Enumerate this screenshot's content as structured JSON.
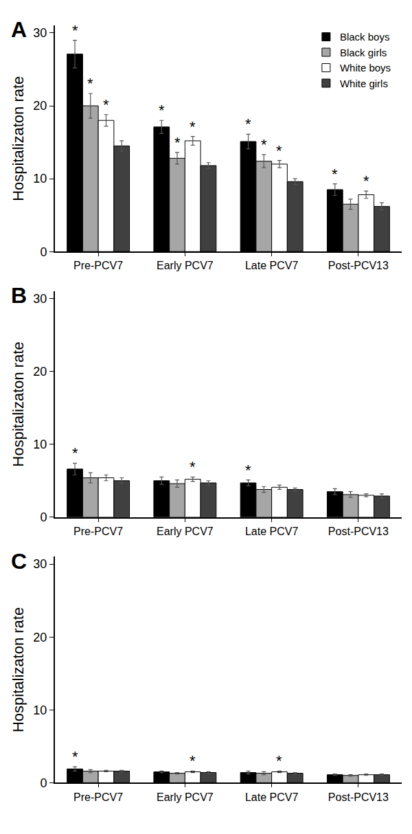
{
  "chart_data": [
    {
      "type": "bar",
      "title": "A",
      "y_label": "Hospitalizaton rate",
      "categories": [
        "Pre-PCV7",
        "Early PCV7",
        "Late PCV7",
        "Post-PCV13"
      ],
      "ylim": [
        0,
        31
      ],
      "yticks": [
        0,
        10,
        20,
        30
      ],
      "grid": false,
      "legend": "upper right",
      "series": [
        {
          "name": "Black boys",
          "color": "#000000",
          "values": [
            27.1,
            17.1,
            15.1,
            8.5
          ],
          "errors": [
            1.9,
            0.9,
            1.0,
            0.8
          ],
          "annotations": [
            "*",
            "*",
            "*",
            "*"
          ]
        },
        {
          "name": "Black girls",
          "color": "#a6a6a6",
          "values": [
            20.0,
            12.8,
            12.4,
            6.5
          ],
          "errors": [
            1.7,
            0.8,
            0.9,
            0.7
          ],
          "annotations": [
            "*",
            "*",
            "*",
            null
          ]
        },
        {
          "name": "White boys",
          "color": "#ffffff",
          "values": [
            18.0,
            15.2,
            12.0,
            7.8
          ],
          "errors": [
            0.8,
            0.6,
            0.5,
            0.5
          ],
          "annotations": [
            "*",
            "*",
            "*",
            "*"
          ]
        },
        {
          "name": "White girls",
          "color": "#404040",
          "values": [
            14.5,
            11.8,
            9.6,
            6.2
          ],
          "errors": [
            0.7,
            0.4,
            0.4,
            0.5
          ],
          "annotations": [
            null,
            null,
            null,
            null
          ]
        }
      ]
    },
    {
      "type": "bar",
      "title": "B",
      "y_label": "Hospitalizaton rate",
      "categories": [
        "Pre-PCV7",
        "Early PCV7",
        "Late PCV7",
        "Post-PCV13"
      ],
      "ylim": [
        0,
        31
      ],
      "yticks": [
        0,
        10,
        20,
        30
      ],
      "grid": false,
      "series": [
        {
          "name": "Black boys",
          "color": "#000000",
          "values": [
            6.6,
            5.0,
            4.7,
            3.5
          ],
          "errors": [
            0.8,
            0.5,
            0.4,
            0.4
          ],
          "annotations": [
            "*",
            null,
            "*",
            null
          ]
        },
        {
          "name": "Black girls",
          "color": "#a6a6a6",
          "values": [
            5.4,
            4.6,
            3.8,
            3.1
          ],
          "errors": [
            0.7,
            0.5,
            0.4,
            0.4
          ],
          "annotations": [
            null,
            null,
            null,
            null
          ]
        },
        {
          "name": "White boys",
          "color": "#ffffff",
          "values": [
            5.4,
            5.2,
            4.1,
            3.0
          ],
          "errors": [
            0.4,
            0.3,
            0.3,
            0.2
          ],
          "annotations": [
            null,
            "*",
            null,
            null
          ]
        },
        {
          "name": "White girls",
          "color": "#404040",
          "values": [
            5.0,
            4.7,
            3.8,
            2.9
          ],
          "errors": [
            0.4,
            0.3,
            0.2,
            0.3
          ],
          "annotations": [
            null,
            null,
            null,
            null
          ]
        }
      ]
    },
    {
      "type": "bar",
      "title": "C",
      "y_label": "Hospitalizaton rate",
      "categories": [
        "Pre-PCV7",
        "Early PCV7",
        "Late PCV7",
        "Post-PCV13"
      ],
      "ylim": [
        0,
        31
      ],
      "yticks": [
        0,
        10,
        20,
        30
      ],
      "grid": false,
      "series": [
        {
          "name": "Black boys",
          "color": "#000000",
          "values": [
            1.9,
            1.5,
            1.4,
            1.1
          ],
          "errors": [
            0.3,
            0.1,
            0.2,
            0.1
          ],
          "annotations": [
            "*",
            null,
            null,
            null
          ]
        },
        {
          "name": "Black girls",
          "color": "#a6a6a6",
          "values": [
            1.6,
            1.3,
            1.3,
            1.0
          ],
          "errors": [
            0.2,
            0.1,
            0.2,
            0.1
          ],
          "annotations": [
            null,
            null,
            null,
            null
          ]
        },
        {
          "name": "White boys",
          "color": "#ffffff",
          "values": [
            1.6,
            1.5,
            1.5,
            1.1
          ],
          "errors": [
            0.1,
            0.1,
            0.1,
            0.1
          ],
          "annotations": [
            null,
            "*",
            "*",
            null
          ]
        },
        {
          "name": "White girls",
          "color": "#404040",
          "values": [
            1.6,
            1.4,
            1.3,
            1.1
          ],
          "errors": [
            0.1,
            0.1,
            0.1,
            0.1
          ],
          "annotations": [
            null,
            null,
            null,
            null
          ]
        }
      ]
    }
  ]
}
